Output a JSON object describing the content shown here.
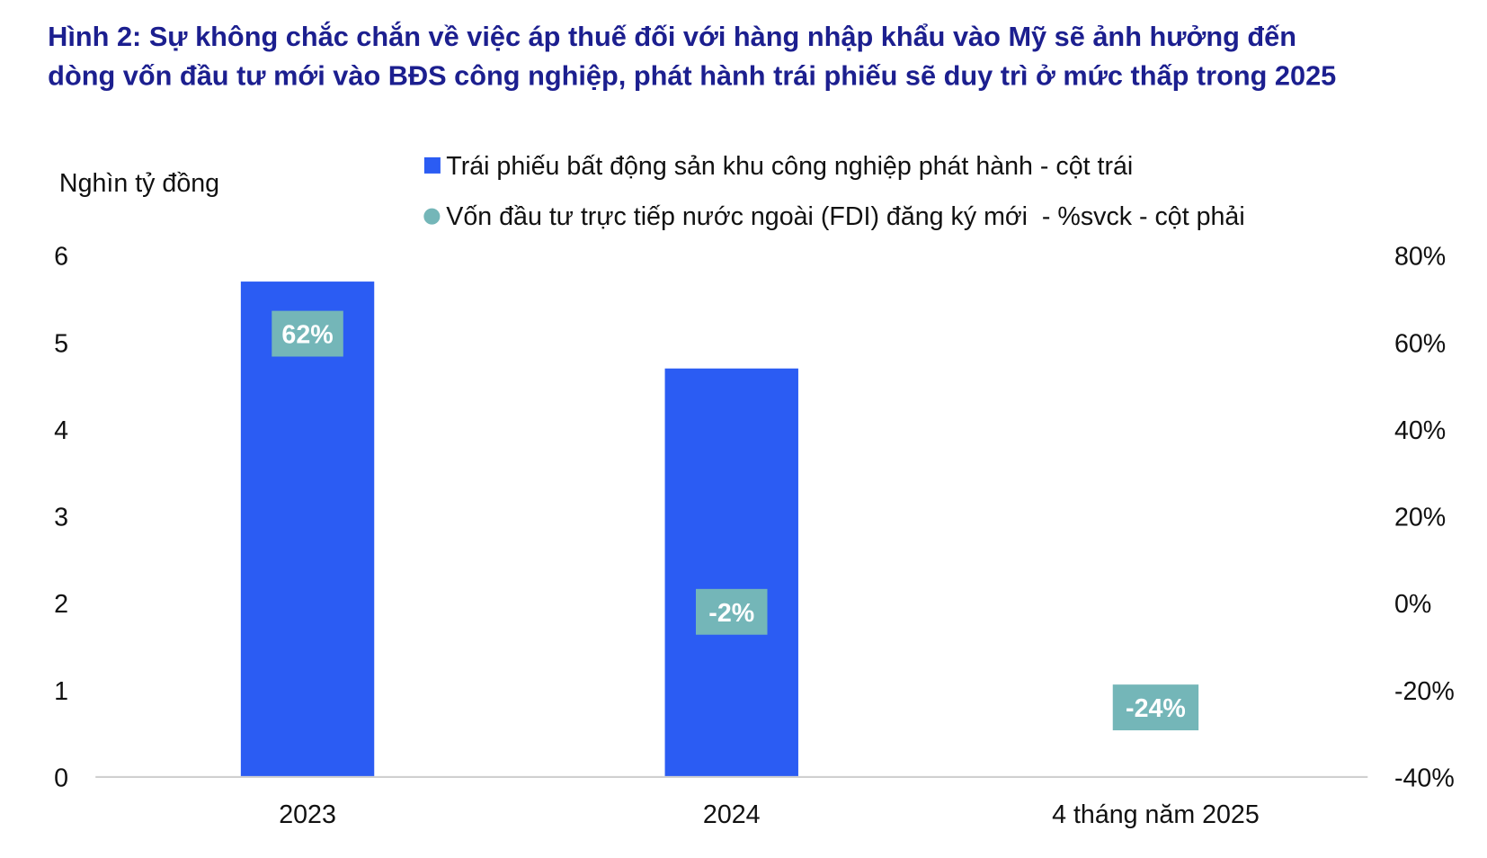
{
  "chart_data": {
    "type": "bar",
    "title_lines": [
      "Hình 2: Sự không chắc chắn về việc áp thuế đối với hàng nhập khẩu vào Mỹ sẽ ảnh hưởng đến",
      "dòng vốn đầu tư mới vào BĐS công nghiệp, phát hành trái phiếu sẽ duy trì ở mức thấp trong 2025"
    ],
    "ylabel": "Nghìn tỷ đồng",
    "categories": [
      "2023",
      "2024",
      "4 tháng năm 2025"
    ],
    "ylim": [
      0,
      6
    ],
    "yticks": [
      "0",
      "1",
      "2",
      "3",
      "4",
      "5",
      "6"
    ],
    "y2lim": [
      -40,
      80
    ],
    "y2ticks": [
      "-40%",
      "-20%",
      "0%",
      "20%",
      "40%",
      "60%",
      "80%"
    ],
    "legend_position": "top",
    "series": [
      {
        "name": "Trái phiếu bất động sản khu công nghiệp phát hành - cột trái",
        "axis": "left",
        "kind": "bar",
        "color": "#2b5cf3",
        "values": [
          5.7,
          4.7,
          0
        ]
      },
      {
        "name": "Vốn đầu tư trực tiếp nước ngoài (FDI) đăng ký mới  - %svck - cột phải",
        "axis": "right",
        "kind": "marker",
        "color": "#74b6b8",
        "values": [
          62,
          -2,
          -24
        ],
        "labels": [
          "62%",
          "-2%",
          "-24%"
        ]
      }
    ],
    "grid": false
  }
}
